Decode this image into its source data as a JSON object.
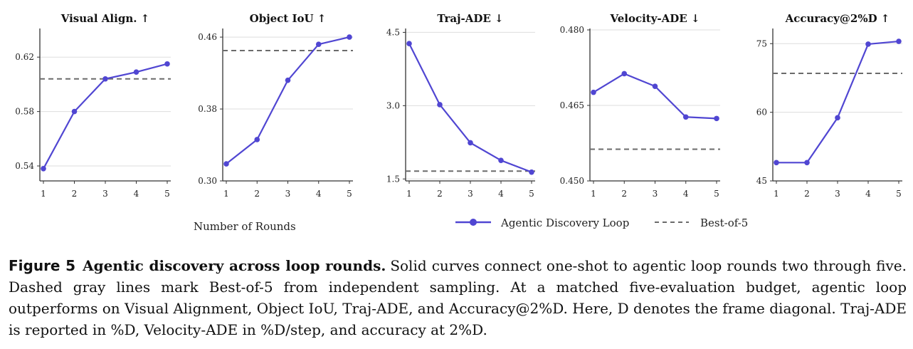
{
  "chart_data": [
    {
      "type": "line",
      "title": "Visual Align. ↑",
      "x": [
        1,
        2,
        3,
        4,
        5
      ],
      "yticks": [
        "0.54",
        "0.58",
        "0.62"
      ],
      "ylim": [
        0.529,
        0.64
      ],
      "series": [
        {
          "name": "Agentic Discovery Loop",
          "values": [
            0.538,
            0.58,
            0.604,
            0.609,
            0.615
          ]
        },
        {
          "name": "Best-of-5",
          "constant": 0.604
        }
      ]
    },
    {
      "type": "line",
      "title": "Object IoU ↑",
      "x": [
        1,
        2,
        3,
        4,
        5
      ],
      "yticks": [
        "0.30",
        "0.38",
        "0.46"
      ],
      "ylim": [
        0.3,
        0.468
      ],
      "series": [
        {
          "name": "Agentic Discovery Loop",
          "values": [
            0.319,
            0.346,
            0.412,
            0.452,
            0.46
          ]
        },
        {
          "name": "Best-of-5",
          "constant": 0.445
        }
      ]
    },
    {
      "type": "line",
      "title": "Traj-ADE ↓",
      "x": [
        1,
        2,
        3,
        4,
        5
      ],
      "yticks": [
        "1.5",
        "3.0",
        "4.5"
      ],
      "ylim": [
        1.46,
        4.55
      ],
      "series": [
        {
          "name": "Agentic Discovery Loop",
          "values": [
            4.27,
            3.02,
            2.24,
            1.88,
            1.64
          ]
        },
        {
          "name": "Best-of-5",
          "constant": 1.66
        }
      ]
    },
    {
      "type": "line",
      "title": "Velocity-ADE ↓",
      "x": [
        1,
        2,
        3,
        4,
        5
      ],
      "yticks": [
        "0.450",
        "0.465",
        "0.480"
      ],
      "ylim": [
        0.45,
        0.48
      ],
      "series": [
        {
          "name": "Agentic Discovery Loop",
          "values": [
            0.4676,
            0.4713,
            0.4688,
            0.4627,
            0.4624
          ]
        },
        {
          "name": "Best-of-5",
          "constant": 0.4563
        }
      ]
    },
    {
      "type": "line",
      "title": "Accuracy@2%D ↑",
      "x": [
        1,
        2,
        3,
        4,
        5
      ],
      "yticks": [
        "45",
        "60",
        "75"
      ],
      "ylim": [
        45,
        78
      ],
      "series": [
        {
          "name": "Agentic Discovery Loop",
          "values": [
            49.0,
            49.0,
            58.8,
            74.9,
            75.5
          ]
        },
        {
          "name": "Best-of-5",
          "constant": 68.5
        }
      ]
    }
  ],
  "xlabel": "Number of Rounds",
  "legend": {
    "solid": "Agentic Discovery Loop",
    "dashed": "Best-of-5"
  },
  "colors": {
    "line": "#5046d2",
    "baseline": "#6b6b6b",
    "grid": "#dddddd",
    "axis": "#333333"
  },
  "caption": {
    "label": "Figure 5",
    "title": "Agentic discovery across loop rounds.",
    "text": "Solid curves connect one-shot to agentic loop rounds two through five. Dashed gray lines mark Best-of-5 from independent sampling. At a matched five-evaluation budget, agentic loop outperforms on Visual Alignment, Object IoU, Traj-ADE, and Accuracy@2%D. Here, D denotes the frame diagonal. Traj-ADE is reported in %D, Velocity-ADE in %D/step, and accuracy at 2%D."
  }
}
